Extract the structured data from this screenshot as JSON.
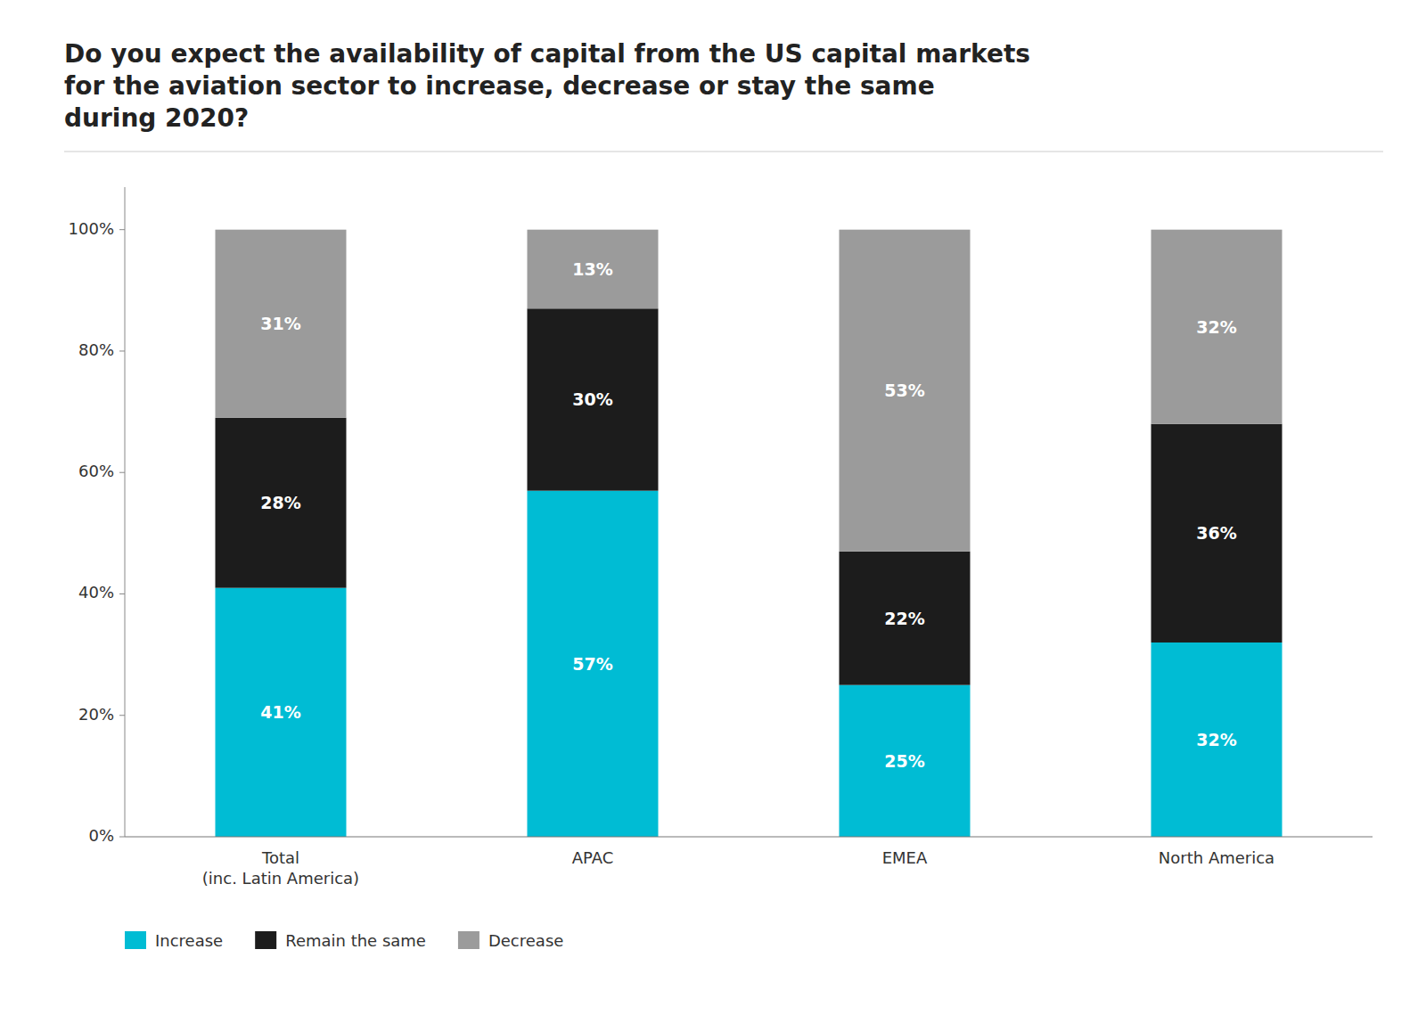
{
  "chart_data": {
    "type": "bar",
    "title": "Do you expect the availability of capital from the US capital markets\nfor the aviation sector to increase, decrease or stay the same\nduring 2020?",
    "categories": [
      "Total\n(inc. Latin America)",
      "APAC",
      "EMEA",
      "North America"
    ],
    "series": [
      {
        "name": "Increase",
        "color": "#00bcd4",
        "values": [
          41,
          57,
          25,
          32
        ],
        "value_labels": [
          "41%",
          "57%",
          "25%",
          "32%"
        ]
      },
      {
        "name": "Remain the same",
        "color": "#1c1c1c",
        "values": [
          28,
          30,
          22,
          36
        ],
        "value_labels": [
          "28%",
          "30%",
          "22%",
          "36%"
        ]
      },
      {
        "name": "Decrease",
        "color": "#9b9b9b",
        "values": [
          31,
          13,
          53,
          32
        ],
        "value_labels": [
          "31%",
          "13%",
          "53%",
          "32%"
        ]
      }
    ],
    "stacked": true,
    "data_labels": true,
    "ylim": [
      0,
      107
    ],
    "yticks": [
      {
        "value": 0,
        "label": "0%"
      },
      {
        "value": 20,
        "label": "20%"
      },
      {
        "value": 40,
        "label": "40%"
      },
      {
        "value": 60,
        "label": "60%"
      },
      {
        "value": 80,
        "label": "80%"
      },
      {
        "value": 100,
        "label": "100%"
      }
    ],
    "grid": false,
    "legend": "bottom"
  }
}
